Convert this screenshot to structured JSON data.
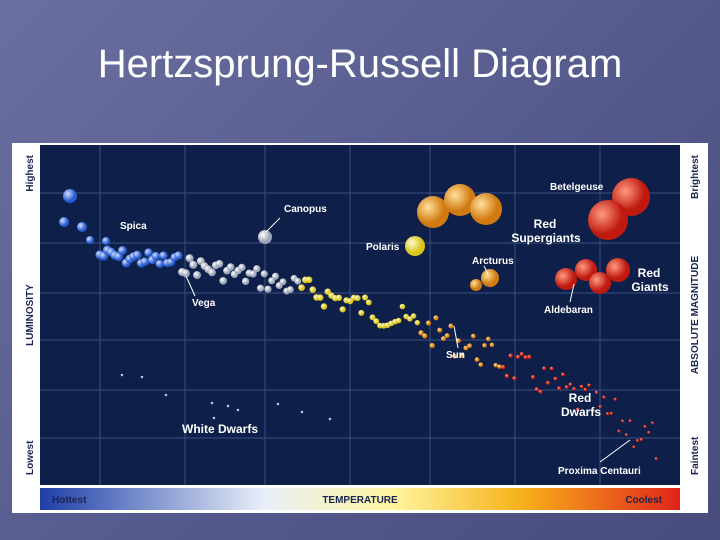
{
  "title": "Hertzsprung-Russell Diagram",
  "diagram": {
    "left_axis": {
      "low": "Lowest",
      "label": "LUMINOSITY",
      "high": "Highest"
    },
    "right_axis": {
      "low": "Faintest",
      "label": "ABSOLUTE MAGNITUDE",
      "high": "Brightest"
    },
    "bottom_axis": {
      "low": "Hottest",
      "label": "TEMPERATURE",
      "high": "Coolest"
    },
    "labels": {
      "betelgeuse": "Betelgeuse",
      "red_supergiants": [
        "Red",
        "Supergiants"
      ],
      "canopus": "Canopus",
      "spica": "Spica",
      "polaris": "Polaris",
      "arcturus": "Arcturus",
      "red_giants": [
        "Red",
        "Giants"
      ],
      "aldebaran": "Aldebaran",
      "vega": "Vega",
      "sun": "Sun",
      "red_dwarfs": [
        "Red",
        "Dwarfs"
      ],
      "white_dwarfs": "White Dwarfs",
      "proxima": "Proxima Centauri"
    }
  }
}
